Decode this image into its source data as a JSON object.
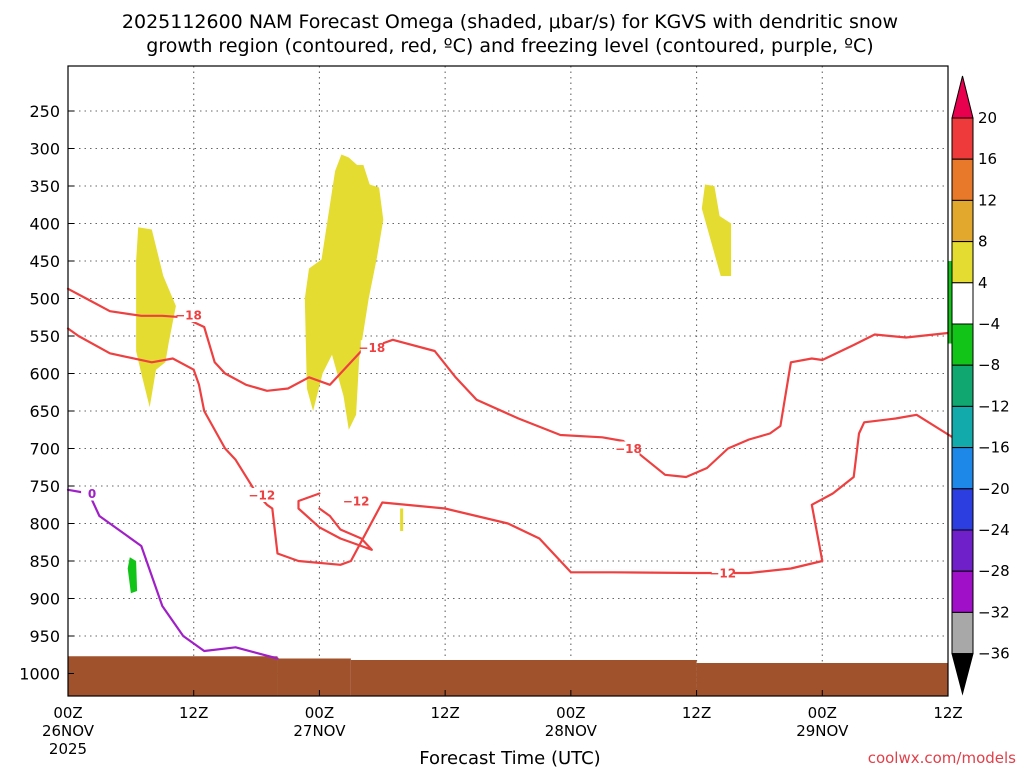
{
  "chart_data": {
    "type": "contour",
    "title_line1": "2025112600 NAM Forecast Omega (shaded, μbar/s) for KGVS with dendritic snow",
    "title_line2": "growth region (contoured, red, ºC) and freezing level (contoured, purple, ºC)",
    "xlabel": "Forecast Time (UTC)",
    "credit": "coolwx.com/models",
    "x_ticks": [
      {
        "h": 0,
        "line1": "00Z",
        "line2": "26NOV",
        "line3": "2025"
      },
      {
        "h": 12,
        "line1": "12Z",
        "line2": "",
        "line3": ""
      },
      {
        "h": 24,
        "line1": "00Z",
        "line2": "27NOV",
        "line3": ""
      },
      {
        "h": 36,
        "line1": "12Z",
        "line2": "",
        "line3": ""
      },
      {
        "h": 48,
        "line1": "00Z",
        "line2": "28NOV",
        "line3": ""
      },
      {
        "h": 60,
        "line1": "12Z",
        "line2": "",
        "line3": ""
      },
      {
        "h": 72,
        "line1": "00Z",
        "line2": "29NOV",
        "line3": ""
      },
      {
        "h": 84,
        "line1": "12Z",
        "line2": "",
        "line3": ""
      }
    ],
    "x_range_hours": [
      0,
      84
    ],
    "y_range_hPa": [
      1030,
      190
    ],
    "y_ticks": [
      250,
      300,
      350,
      400,
      450,
      500,
      550,
      600,
      650,
      700,
      750,
      800,
      850,
      900,
      950,
      1000
    ],
    "colorbar": {
      "labels": [
        "20",
        "16",
        "12",
        "8",
        "4",
        "−4",
        "−8",
        "−12",
        "−16",
        "−20",
        "−24",
        "−28",
        "−32",
        "−36"
      ],
      "colors": [
        "#e8004e",
        "#ee3a3a",
        "#e8782a",
        "#e2a82e",
        "#e5dc32",
        "#ffffff",
        "#12c418",
        "#10a870",
        "#12aaaa",
        "#1e88e8",
        "#2c3ee0",
        "#7020c8",
        "#a010c8",
        "#a8a8a8",
        "#000000"
      ]
    },
    "omega_shading": {
      "color": "#e5dc32",
      "green_color": "#12c418",
      "regions": [
        [
          [
            6.7,
            405
          ],
          [
            8.0,
            408
          ],
          [
            9.1,
            470
          ],
          [
            10.3,
            510
          ],
          [
            9.6,
            560
          ],
          [
            9.3,
            585
          ],
          [
            8.4,
            595
          ],
          [
            7.8,
            645
          ],
          [
            7.0,
            600
          ],
          [
            6.5,
            570
          ],
          [
            6.5,
            450
          ]
        ],
        [
          [
            23.0,
            460
          ],
          [
            24.2,
            448
          ],
          [
            25.5,
            330
          ],
          [
            26.1,
            308
          ],
          [
            26.8,
            312
          ],
          [
            27.6,
            322
          ],
          [
            28.2,
            322
          ],
          [
            28.8,
            348
          ],
          [
            29.7,
            352
          ],
          [
            30.1,
            395
          ],
          [
            29.5,
            445
          ],
          [
            28.7,
            500
          ],
          [
            27.8,
            580
          ],
          [
            27.5,
            655
          ],
          [
            26.8,
            675
          ],
          [
            26.3,
            630
          ],
          [
            25.2,
            575
          ],
          [
            24.3,
            600
          ],
          [
            23.9,
            622
          ],
          [
            23.4,
            650
          ],
          [
            22.8,
            620
          ],
          [
            22.6,
            500
          ]
        ],
        [
          [
            60.8,
            348
          ],
          [
            61.7,
            350
          ],
          [
            62.2,
            390
          ],
          [
            63.3,
            400
          ],
          [
            63.3,
            470
          ],
          [
            62.3,
            470
          ],
          [
            61.3,
            420
          ],
          [
            60.5,
            380
          ]
        ],
        [
          [
            31.7,
            780
          ],
          [
            32.0,
            780
          ],
          [
            32.0,
            810
          ],
          [
            31.7,
            810
          ]
        ]
      ],
      "green_regions": [
        [
          [
            5.9,
            845
          ],
          [
            6.5,
            850
          ],
          [
            6.6,
            890
          ],
          [
            6.0,
            893
          ],
          [
            5.7,
            860
          ]
        ],
        [
          [
            84.0,
            450
          ],
          [
            84.5,
            450
          ],
          [
            84.5,
            560
          ],
          [
            84.0,
            560
          ]
        ]
      ]
    },
    "terrain": {
      "color": "#a0522d",
      "segments": [
        {
          "h0": 0,
          "h1": 20,
          "p": 977
        },
        {
          "h0": 20,
          "h1": 27,
          "p": 980
        },
        {
          "h0": 27,
          "h1": 60,
          "p": 982
        },
        {
          "h0": 60,
          "h1": 84,
          "p": 986
        }
      ]
    },
    "contours": [
      {
        "name": "dgz-upper",
        "color": "#ee4040",
        "points": [
          [
            0,
            487
          ],
          [
            2,
            502
          ],
          [
            4,
            517
          ],
          [
            7,
            523
          ],
          [
            9,
            523
          ],
          [
            11,
            525
          ],
          [
            13,
            538
          ],
          [
            14,
            585
          ],
          [
            15,
            600
          ],
          [
            17,
            615
          ],
          [
            19,
            623
          ],
          [
            21,
            620
          ],
          [
            23,
            605
          ],
          [
            25,
            615
          ],
          [
            28,
            570
          ],
          [
            29,
            565
          ],
          [
            31,
            555
          ],
          [
            35,
            570
          ],
          [
            37,
            605
          ],
          [
            39,
            635
          ],
          [
            43,
            660
          ],
          [
            47,
            682
          ],
          [
            51,
            685
          ],
          [
            53,
            690
          ],
          [
            57,
            735
          ],
          [
            59,
            738
          ],
          [
            61,
            726
          ],
          [
            63,
            700
          ],
          [
            65,
            688
          ],
          [
            67,
            680
          ],
          [
            68,
            670
          ],
          [
            69,
            585
          ],
          [
            71,
            580
          ],
          [
            72,
            582
          ],
          [
            75,
            562
          ],
          [
            77,
            548
          ],
          [
            80,
            552
          ],
          [
            84,
            546
          ]
        ]
      },
      {
        "name": "dgz-lower",
        "color": "#ee4040",
        "points": [
          [
            0,
            540
          ],
          [
            1,
            550
          ],
          [
            4,
            573
          ],
          [
            8,
            585
          ],
          [
            10,
            580
          ],
          [
            12,
            595
          ],
          [
            12.5,
            615
          ],
          [
            13,
            650
          ],
          [
            15,
            700
          ],
          [
            16,
            715
          ],
          [
            18,
            760
          ],
          [
            19,
            775
          ],
          [
            19.5,
            780
          ],
          [
            20,
            840
          ],
          [
            22,
            850
          ],
          [
            26,
            855
          ],
          [
            27,
            850
          ],
          [
            30,
            772
          ],
          [
            36,
            780
          ],
          [
            42,
            800
          ],
          [
            45,
            820
          ],
          [
            47,
            850
          ],
          [
            48,
            865
          ],
          [
            52,
            865
          ],
          [
            60,
            866
          ],
          [
            65,
            866
          ],
          [
            69,
            860
          ],
          [
            72,
            850
          ],
          [
            71,
            775
          ],
          [
            73,
            760
          ],
          [
            75,
            738
          ],
          [
            75.5,
            680
          ],
          [
            76,
            665
          ],
          [
            79,
            660
          ],
          [
            81,
            655
          ],
          [
            85,
            690
          ]
        ]
      },
      {
        "name": "dgz-inner",
        "color": "#ee4040",
        "points": [
          [
            24,
            760
          ],
          [
            22,
            770
          ],
          [
            22,
            780
          ],
          [
            24,
            805
          ],
          [
            26,
            820
          ],
          [
            28,
            830
          ],
          [
            29,
            835
          ],
          [
            28,
            820
          ],
          [
            26,
            808
          ],
          [
            25,
            790
          ],
          [
            24,
            780
          ]
        ]
      },
      {
        "name": "freezing-level",
        "color": "#a020c8",
        "points": [
          [
            0,
            755
          ],
          [
            2,
            760
          ],
          [
            3,
            790
          ],
          [
            5,
            810
          ],
          [
            7,
            830
          ],
          [
            8,
            870
          ],
          [
            9,
            910
          ],
          [
            11,
            950
          ],
          [
            13,
            970
          ],
          [
            16,
            965
          ],
          [
            20,
            980
          ]
        ]
      }
    ],
    "contour_labels": [
      {
        "text": "−18",
        "h": 11.5,
        "p": 522,
        "color": "#ee4040"
      },
      {
        "text": "−18",
        "h": 29,
        "p": 565,
        "color": "#ee4040"
      },
      {
        "text": "−18",
        "h": 53.5,
        "p": 700,
        "color": "#ee4040"
      },
      {
        "text": "−12",
        "h": 18.5,
        "p": 762,
        "color": "#ee4040"
      },
      {
        "text": "−12",
        "h": 27.5,
        "p": 770,
        "color": "#ee4040"
      },
      {
        "text": "−12",
        "h": 62.5,
        "p": 866,
        "color": "#ee4040"
      },
      {
        "text": "0",
        "h": 2.3,
        "p": 760,
        "color": "#a020c8"
      }
    ]
  }
}
